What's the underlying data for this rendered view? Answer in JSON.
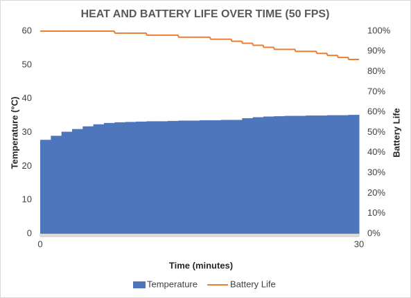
{
  "chart_data": {
    "type": "step-area-line",
    "title": "HEAT AND BATTERY LIFE OVER TIME (50 FPS)",
    "x_label": "Time (minutes)",
    "y_label": "Temperature (°C)",
    "y2_label": "Battery Life",
    "x": [
      0,
      1,
      2,
      3,
      4,
      5,
      6,
      7,
      8,
      9,
      10,
      11,
      12,
      13,
      14,
      15,
      16,
      17,
      18,
      19,
      20,
      21,
      22,
      23,
      24,
      25,
      26,
      27,
      28,
      29
    ],
    "xlim": [
      0,
      30
    ],
    "xticks": [
      0,
      30
    ],
    "ylim": [
      0,
      60
    ],
    "yticks": [
      0,
      10,
      20,
      30,
      40,
      50,
      60
    ],
    "y2lim": [
      0,
      100
    ],
    "y2ticks": [
      {
        "value": 0,
        "label": "0%"
      },
      {
        "value": 10,
        "label": "10%"
      },
      {
        "value": 20,
        "label": "20%"
      },
      {
        "value": 30,
        "label": "30%"
      },
      {
        "value": 40,
        "label": "40%"
      },
      {
        "value": 50,
        "label": "50%"
      },
      {
        "value": 60,
        "label": "60%"
      },
      {
        "value": 70,
        "label": "70%"
      },
      {
        "value": 80,
        "label": "80%"
      },
      {
        "value": 90,
        "label": "90%"
      },
      {
        "value": 100,
        "label": "100%"
      }
    ],
    "series": [
      {
        "name": "Temperature",
        "color": "#4e76bd",
        "values": [
          27.8,
          29.0,
          30.2,
          31.0,
          31.8,
          32.4,
          32.8,
          33.0,
          33.1,
          33.2,
          33.3,
          33.3,
          33.4,
          33.5,
          33.5,
          33.6,
          33.6,
          33.7,
          33.7,
          34.2,
          34.5,
          34.7,
          34.8,
          34.9,
          34.9,
          35.0,
          35.0,
          35.1,
          35.1,
          35.2
        ]
      },
      {
        "name": "Battery Life",
        "color": "#ed7d31",
        "axis": "y2",
        "values": [
          100,
          100,
          100,
          100,
          100,
          100,
          100,
          99,
          99,
          99,
          98,
          98,
          98,
          97,
          97,
          97,
          96,
          96,
          95,
          94,
          93,
          92,
          91,
          91,
          90,
          90,
          89,
          88,
          87,
          86
        ]
      }
    ]
  }
}
